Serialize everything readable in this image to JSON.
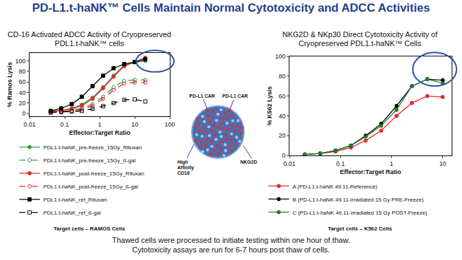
{
  "title": "PD-L1.t-haNK™ Cells Maintain Normal Cytotoxicity and ADCC Activities",
  "diagram": {
    "labels": [
      "PD-L1 CAR",
      "PD-L1 CAR",
      "NKG2D",
      "High Affinity CD16"
    ]
  },
  "notes": [
    "Thawed cells were processed to initiate testing within one hour of thaw.",
    "Cytotoxicity assays are run for 6-7 hours post thaw of cells."
  ],
  "chart_data": [
    {
      "type": "line",
      "title": "CD-16 Activated ADCC Activity of Cryopreserved PDL1.t-haNK™ cells",
      "x_label": "Effector:Target Ratio",
      "y_label": "% Ramos Lysis",
      "caption": "Target cells – RAMOS Cells",
      "log": "x",
      "grid": false,
      "legend": "bottom",
      "xlim": [
        0.01,
        100
      ],
      "xticks": [
        0.01,
        0.1,
        1,
        10,
        100
      ],
      "ylim": [
        -5,
        115
      ],
      "yticks": [
        0,
        20,
        40,
        60,
        80,
        100
      ],
      "x": [
        0.04,
        0.08,
        0.16,
        0.31,
        0.625,
        1.25,
        2.5,
        5,
        10,
        20
      ],
      "series": [
        {
          "name": "PDL1.t-haNK_pre-freeze_15Gy_Rituxan",
          "color": "#2e9e3e",
          "marker": "circle",
          "line_style": "solid",
          "values": [
            4,
            6,
            10,
            17,
            30,
            50,
            72,
            92,
            97,
            100
          ]
        },
        {
          "name": "PDL1.t-haNK_pre-freeze_15Gy_ß-gal",
          "color": "#2e9e3e",
          "marker": "circle-open",
          "line_style": "dash",
          "values": [
            3,
            4,
            6,
            10,
            18,
            32,
            50,
            62,
            64,
            64
          ]
        },
        {
          "name": "PDL1.t-haNK_post-freeze_15Gy_Rituxan",
          "color": "#e8262b",
          "marker": "circle",
          "line_style": "solid",
          "values": [
            4,
            6,
            9,
            15,
            28,
            48,
            70,
            90,
            98,
            106
          ]
        },
        {
          "name": "PDL1.t-haNK_post-freeze_15Gy_ß-gal",
          "color": "#e8262b",
          "marker": "circle-open",
          "line_style": "dash",
          "values": [
            3,
            4,
            5,
            8,
            15,
            28,
            45,
            57,
            59,
            59
          ]
        },
        {
          "name": "PDL1.t-haNK_ref_Rituxan",
          "color": "#000000",
          "marker": "square",
          "line_style": "solid",
          "values": [
            5,
            10,
            18,
            32,
            52,
            72,
            86,
            94,
            98,
            103
          ]
        },
        {
          "name": "PDL1.t-haNK_ref_ß-gal",
          "color": "#000000",
          "marker": "square-open",
          "line_style": "dash",
          "values": [
            2,
            3,
            4,
            5,
            9,
            14,
            20,
            26,
            27,
            23
          ]
        }
      ]
    },
    {
      "type": "line",
      "title": "NKG2D & NKp30 Direct Cytotoxicity Activity of Cryopreserved PDL1.t-haNK™ Cells",
      "x_label": "Effector:Target Ratio",
      "y_label": "% K562 Lysis",
      "caption": "Target cells – K562 Cells",
      "log": "x",
      "grid": false,
      "legend": "bottom",
      "xlim": [
        0.01,
        15
      ],
      "xticks": [
        0.01,
        0.1,
        1,
        10
      ],
      "ylim": [
        0,
        100
      ],
      "yticks": [
        0,
        20,
        40,
        60,
        80,
        100
      ],
      "x": [
        0.02,
        0.04,
        0.08,
        0.16,
        0.31,
        0.625,
        1.25,
        2.5,
        5,
        10
      ],
      "series": [
        {
          "name": "A (PD-L1.t-haNK 49.11-Reference)",
          "color": "#e8262b",
          "marker": "circle",
          "line_style": "solid",
          "values": [
            1,
            2,
            4,
            8,
            15,
            25,
            40,
            53,
            60,
            59
          ]
        },
        {
          "name": "B (PD-L1.t-haNK 49.11-Irradiated 15 Gy PRE-Freeze)",
          "color": "#000000",
          "marker": "circle",
          "line_style": "solid",
          "values": [
            1,
            2,
            5,
            10,
            20,
            32,
            50,
            70,
            77,
            76
          ]
        },
        {
          "name": "C (PD-L1.t-haNK 49.11-Irradiated 15 Gy POST-Freeze)",
          "color": "#1e7b2e",
          "marker": "circle",
          "line_style": "solid",
          "values": [
            1,
            2,
            5,
            10,
            19,
            30,
            46,
            70,
            77,
            73
          ]
        }
      ]
    }
  ]
}
